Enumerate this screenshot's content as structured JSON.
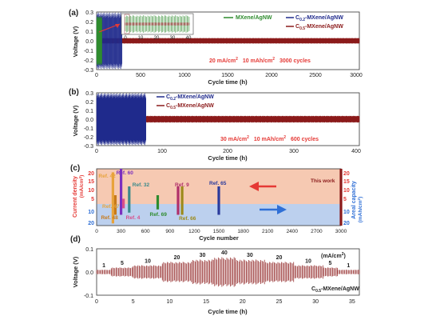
{
  "colors": {
    "green": "#2e8b2e",
    "navy": "#1f2a8c",
    "darkred": "#8b1a1a",
    "orange": "#e8743b",
    "pink": "#d94f8a",
    "red": "#e53935",
    "blue": "#2f6fd6",
    "peach": "#f6c9b2",
    "lightblue": "#bcd0ee"
  },
  "chart_data": [
    {
      "panel": "(a)",
      "type": "line",
      "xlabel": "Cycle time (h)",
      "ylabel": "Voltage (V)",
      "xlim": [
        0,
        3000
      ],
      "ylim": [
        -0.3,
        0.3
      ],
      "xticks": [
        "0",
        "500",
        "1000",
        "1500",
        "2000",
        "2500",
        "3000"
      ],
      "yticks": [
        "-0.3",
        "-0.2",
        "-0.1",
        "0.0",
        "0.1",
        "0.2",
        "0.3"
      ],
      "series": [
        {
          "name": "MXene/AgNW",
          "color": "green",
          "x_range": [
            0,
            60
          ],
          "amplitude": 0.26
        },
        {
          "name": "C0.2-MXene/AgNW",
          "name_parts": [
            "C",
            "0.2",
            "-MXene/AgNW"
          ],
          "color": "navy",
          "x_range": [
            0,
            290
          ],
          "amplitude": 0.3
        },
        {
          "name": "C0.5-MXene/AgNW",
          "name_parts": [
            "C",
            "0.5",
            "-MXene/AgNW"
          ],
          "color": "darkred",
          "x_range": [
            0,
            3000
          ],
          "amplitude": 0.03
        }
      ],
      "conditions": [
        "20 mA/cm",
        "2",
        "10 mAh/cm",
        "2",
        "3000 cycles"
      ],
      "inset": {
        "xticks": [
          "0",
          "10",
          "20",
          "30",
          "40"
        ]
      }
    },
    {
      "panel": "(b)",
      "type": "line",
      "xlabel": "Cycle time (h)",
      "ylabel": "Voltage (V)",
      "xlim": [
        0,
        400
      ],
      "ylim": [
        -0.3,
        0.3
      ],
      "xticks": [
        "0",
        "100",
        "200",
        "300",
        "400"
      ],
      "yticks": [
        "-0.3",
        "-0.2",
        "-0.1",
        "0.0",
        "0.1",
        "0.2",
        "0.3"
      ],
      "series": [
        {
          "name": "C0.2-MXene/AgNW",
          "name_parts": [
            "C",
            "0.2",
            "-MXene/AgNW"
          ],
          "color": "navy",
          "x_range": [
            0,
            75
          ],
          "amplitude": 0.3
        },
        {
          "name": "C0.5-MXene/AgNW",
          "name_parts": [
            "C",
            "0.5",
            "-MXene/AgNW"
          ],
          "color": "darkred",
          "x_range": [
            0,
            400
          ],
          "amplitude": 0.04
        }
      ],
      "conditions": [
        "30 mA/cm",
        "2",
        "10 mAh/cm",
        "2",
        "600 cycles"
      ]
    },
    {
      "panel": "(c)",
      "type": "bar",
      "xlabel": "Cycle number",
      "ylabel_left": "Current density",
      "ylabel_left_unit": "(mA/cm",
      "ylabel_left_sup": "2",
      "ylabel_right": "Areal capacity",
      "ylabel_right_unit": "(mAh/cm",
      "ylabel_right_sup": "2",
      "xlim": [
        0,
        3000
      ],
      "xticks": [
        "0",
        "300",
        "600",
        "900",
        "1200",
        "1500",
        "1800",
        "2100",
        "2400",
        "2700",
        "3000"
      ],
      "yticks_top": [
        "20",
        "15",
        "10",
        "5"
      ],
      "yticks_bottom": [
        "10",
        "20"
      ],
      "refs": [
        {
          "label": "Ref. 42",
          "cycles": 200,
          "current": 18,
          "capacity": 18,
          "color": "#e8a33b"
        },
        {
          "label": "Ref. 60",
          "cycles": 300,
          "current": 20,
          "capacity": 10,
          "color": "#7b2fbf"
        },
        {
          "label": "Ref. 32",
          "cycles": 400,
          "current": 10,
          "capacity": 8,
          "color": "#3a8a8a"
        },
        {
          "label": "Ref. 48",
          "cycles": 230,
          "current": 5,
          "capacity": 10,
          "color": "#c77a1a"
        },
        {
          "label": "Ref. 4",
          "cycles": 330,
          "current": 3,
          "capacity": 4,
          "color": "#d94f8a"
        },
        {
          "label": "Ref. 69",
          "cycles": 750,
          "current": 5,
          "capacity": 5,
          "color": "#2e8b2e"
        },
        {
          "label": "Ref. 9",
          "cycles": 1000,
          "current": 10,
          "capacity": 10,
          "color": "#b0306a"
        },
        {
          "label": "Ref. 66",
          "cycles": 1050,
          "current": 10,
          "capacity": 10,
          "color": "#9c8a1a"
        },
        {
          "label": "Ref. 65",
          "cycles": 1500,
          "current": 10,
          "capacity": 10,
          "color": "#2a3a9c"
        },
        {
          "label": "This work",
          "cycles": 3000,
          "current": 20,
          "capacity": 20,
          "color": "#8b1a1a"
        }
      ],
      "extra_label": "Ref. 47"
    },
    {
      "panel": "(d)",
      "type": "line",
      "xlabel": "Cycle time (h)",
      "ylabel": "Voltage (V)",
      "xlim": [
        0,
        36
      ],
      "ylim": [
        -0.1,
        0.1
      ],
      "xticks": [
        "0",
        "5",
        "10",
        "15",
        "20",
        "25",
        "30",
        "35"
      ],
      "yticks": [
        "-0.1",
        "0.0",
        "0.1"
      ],
      "unit_label": "(mA/cm",
      "unit_sup": "2",
      "series_label_parts": [
        "C",
        "0.5",
        "-MXene/AgNW"
      ],
      "rate_steps": [
        {
          "label": "1",
          "x0": 0,
          "x1": 2,
          "amplitude": 0.01
        },
        {
          "label": "5",
          "x0": 2,
          "x1": 5,
          "amplitude": 0.02
        },
        {
          "label": "10",
          "x0": 5,
          "x1": 9,
          "amplitude": 0.03
        },
        {
          "label": "20",
          "x0": 9,
          "x1": 13,
          "amplitude": 0.045
        },
        {
          "label": "30",
          "x0": 13,
          "x1": 16,
          "amplitude": 0.055
        },
        {
          "label": "40",
          "x0": 16,
          "x1": 19,
          "amplitude": 0.065
        },
        {
          "label": "30",
          "x0": 19,
          "x1": 23,
          "amplitude": 0.055
        },
        {
          "label": "20",
          "x0": 23,
          "x1": 27,
          "amplitude": 0.045
        },
        {
          "label": "10",
          "x0": 27,
          "x1": 31,
          "amplitude": 0.03
        },
        {
          "label": "5",
          "x0": 31,
          "x1": 33,
          "amplitude": 0.02
        },
        {
          "label": "1",
          "x0": 33,
          "x1": 36,
          "amplitude": 0.01
        }
      ]
    }
  ]
}
